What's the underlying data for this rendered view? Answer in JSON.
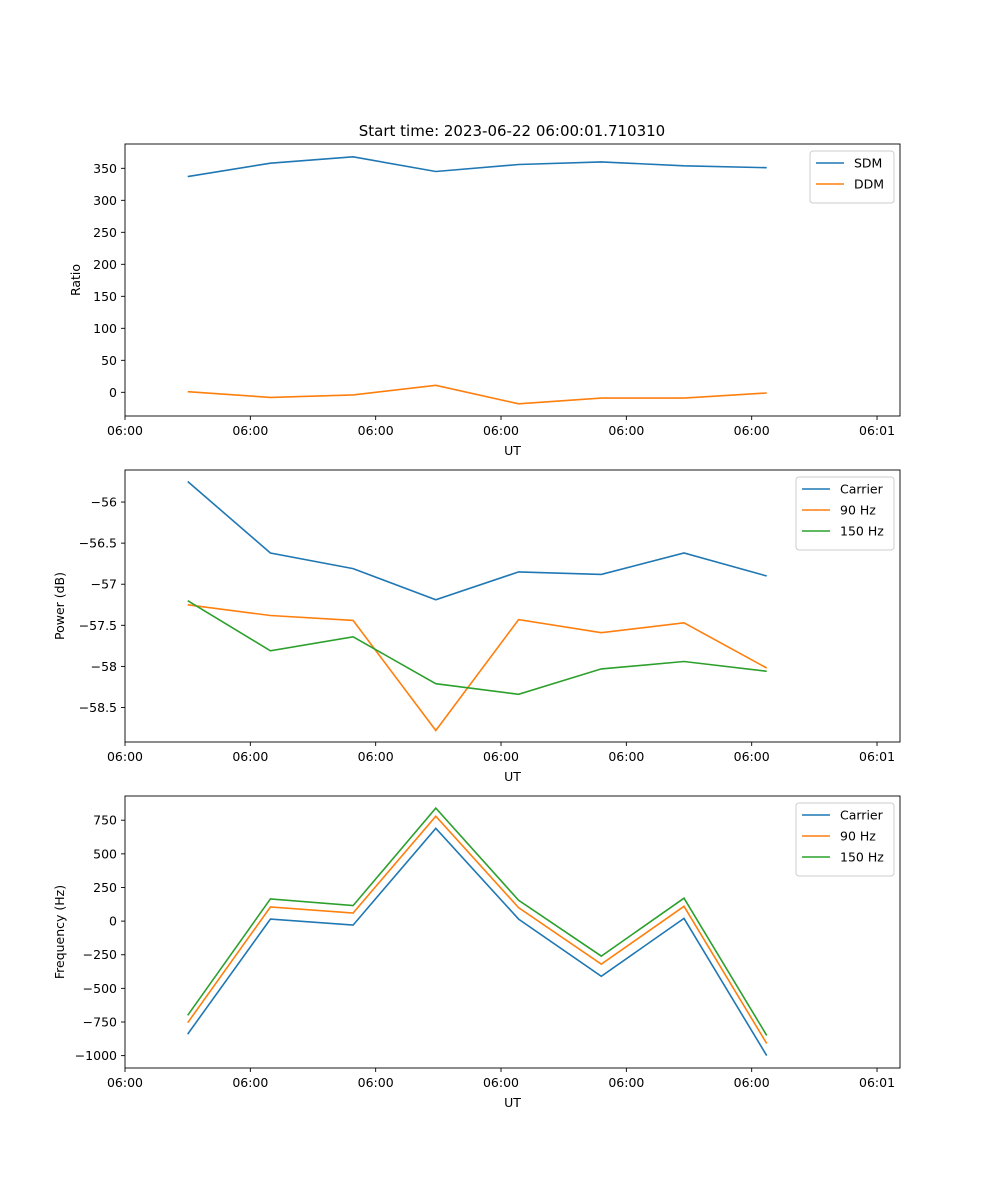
{
  "title": "Start time: 2023-06-22 06:00:01.710310",
  "chart_data": [
    {
      "type": "line",
      "xlabel": "UT",
      "ylabel": "Ratio",
      "xlim": [
        0,
        9.275
      ],
      "ylim": [
        -37,
        388
      ],
      "x_ticks": [
        {
          "pos": 0,
          "label": "06:00"
        },
        {
          "pos": 1.5,
          "label": "06:00"
        },
        {
          "pos": 3,
          "label": "06:00"
        },
        {
          "pos": 4.5,
          "label": "06:00"
        },
        {
          "pos": 6,
          "label": "06:00"
        },
        {
          "pos": 7.5,
          "label": "06:00"
        },
        {
          "pos": 9,
          "label": "06:01"
        }
      ],
      "y_ticks": [
        0,
        50,
        100,
        150,
        200,
        250,
        300,
        350
      ],
      "legend": "top-right",
      "x": [
        0.75,
        1.74,
        2.73,
        3.72,
        4.71,
        5.7,
        6.69,
        7.68
      ],
      "series": [
        {
          "name": "SDM",
          "color": "#1f77b4",
          "values": [
            337,
            358,
            368,
            345,
            356,
            360,
            354,
            351
          ]
        },
        {
          "name": "DDM",
          "color": "#ff7f0e",
          "values": [
            1,
            -8,
            -4,
            11,
            -18,
            -9,
            -9,
            -1
          ]
        }
      ]
    },
    {
      "type": "line",
      "xlabel": "UT",
      "ylabel": "Power (dB)",
      "xlim": [
        0,
        9.275
      ],
      "ylim": [
        -58.92,
        -55.61
      ],
      "x_ticks": [
        {
          "pos": 0,
          "label": "06:00"
        },
        {
          "pos": 1.5,
          "label": "06:00"
        },
        {
          "pos": 3,
          "label": "06:00"
        },
        {
          "pos": 4.5,
          "label": "06:00"
        },
        {
          "pos": 6,
          "label": "06:00"
        },
        {
          "pos": 7.5,
          "label": "06:00"
        },
        {
          "pos": 9,
          "label": "06:01"
        }
      ],
      "y_ticks": [
        -56.0,
        -56.5,
        -57.0,
        -57.5,
        -58.0,
        -58.5
      ],
      "legend": "top-right",
      "x": [
        0.75,
        1.74,
        2.73,
        3.72,
        4.71,
        5.7,
        6.69,
        7.68
      ],
      "series": [
        {
          "name": "Carrier",
          "color": "#1f77b4",
          "values": [
            -55.75,
            -56.62,
            -56.81,
            -57.19,
            -56.85,
            -56.88,
            -56.62,
            -56.9
          ]
        },
        {
          "name": "90 Hz",
          "color": "#ff7f0e",
          "values": [
            -57.25,
            -57.38,
            -57.44,
            -58.78,
            -57.43,
            -57.59,
            -57.47,
            -58.02
          ]
        },
        {
          "name": "150 Hz",
          "color": "#2ca02c",
          "values": [
            -57.2,
            -57.81,
            -57.64,
            -58.21,
            -58.34,
            -58.03,
            -57.94,
            -58.06
          ]
        }
      ]
    },
    {
      "type": "line",
      "xlabel": "UT",
      "ylabel": "Frequency (Hz)",
      "xlim": [
        0,
        9.275
      ],
      "ylim": [
        -1092,
        930
      ],
      "x_ticks": [
        {
          "pos": 0,
          "label": "06:00"
        },
        {
          "pos": 1.5,
          "label": "06:00"
        },
        {
          "pos": 3,
          "label": "06:00"
        },
        {
          "pos": 4.5,
          "label": "06:00"
        },
        {
          "pos": 6,
          "label": "06:00"
        },
        {
          "pos": 7.5,
          "label": "06:00"
        },
        {
          "pos": 9,
          "label": "06:01"
        }
      ],
      "y_ticks": [
        750,
        500,
        250,
        0,
        -250,
        -500,
        -750,
        -1000
      ],
      "legend": "top-right",
      "x": [
        0.75,
        1.74,
        2.73,
        3.72,
        4.71,
        5.7,
        6.69,
        7.68
      ],
      "series": [
        {
          "name": "Carrier",
          "color": "#1f77b4",
          "values": [
            -840,
            15,
            -30,
            690,
            15,
            -410,
            20,
            -1000
          ]
        },
        {
          "name": "90 Hz",
          "color": "#ff7f0e",
          "values": [
            -755,
            105,
            60,
            780,
            100,
            -320,
            110,
            -910
          ]
        },
        {
          "name": "150 Hz",
          "color": "#2ca02c",
          "values": [
            -700,
            165,
            115,
            840,
            155,
            -260,
            170,
            -850
          ]
        }
      ]
    }
  ]
}
